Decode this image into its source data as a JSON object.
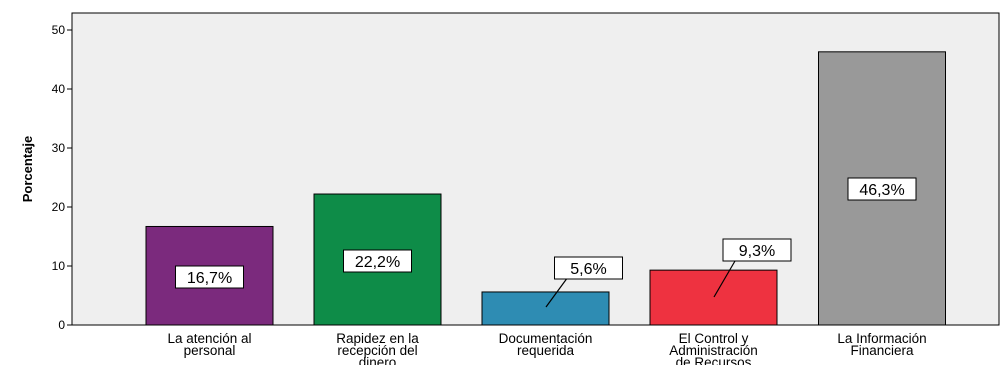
{
  "chart_data": {
    "type": "bar",
    "categories": [
      [
        "La atención al",
        "personal"
      ],
      [
        "Rapidez en la",
        "recepción del",
        "dinero"
      ],
      [
        "Documentación",
        "requerida"
      ],
      [
        "El Control y",
        "Administración",
        "de Recursos"
      ],
      [
        "La Información",
        "Financiera"
      ]
    ],
    "values": [
      16.7,
      22.2,
      5.6,
      9.3,
      46.3
    ],
    "data_labels": [
      "16,7%",
      "22,2%",
      "5,6%",
      "9,3%",
      "46,3%"
    ],
    "colors": [
      "#7B2A7D",
      "#0E8C48",
      "#2E8CB3",
      "#EE3240",
      "#999999"
    ],
    "ylabel": "Porcentaje",
    "ylim": [
      0,
      50
    ],
    "yticks": [
      0,
      10,
      20,
      30,
      40,
      50
    ],
    "plot_background": "#EFEFEF",
    "grid": false
  }
}
